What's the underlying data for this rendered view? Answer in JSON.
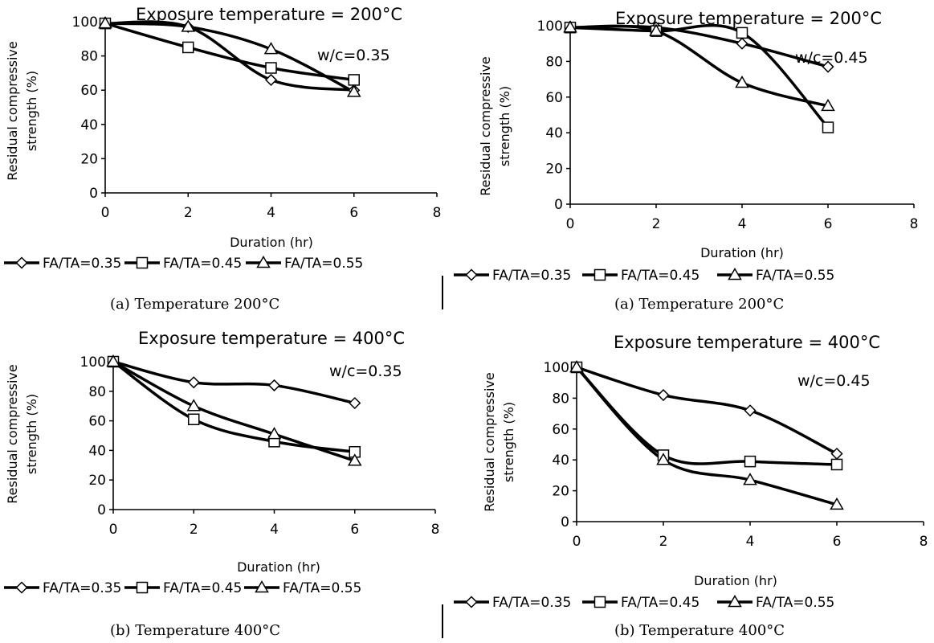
{
  "captions": [
    "(a) Temperature 200°C",
    "(a) Temperature 200°C",
    "(b) Temperature 400°C",
    "(b) Temperature 400°C"
  ],
  "chart_data": [
    {
      "type": "line",
      "title": "Exposure temperature = 200°C",
      "annotation": "w/c=0.35",
      "xlabel": "Duration (hr)",
      "ylabel": "Residual compressive strength (%)",
      "x": [
        0,
        2,
        4,
        6
      ],
      "xticks": [
        "0",
        "2",
        "4",
        "6",
        "8"
      ],
      "yticks": [
        "0",
        "20",
        "40",
        "60",
        "80",
        "100"
      ],
      "xlim": [
        0,
        8
      ],
      "ylim": [
        0,
        100
      ],
      "legend_position": "bottom",
      "series": [
        {
          "name": "FA/TA=0.35",
          "marker": "diamond",
          "values": [
            99,
            97,
            66,
            60
          ]
        },
        {
          "name": "FA/TA=0.45",
          "marker": "square",
          "values": [
            99,
            85,
            73,
            66
          ]
        },
        {
          "name": "FA/TA=0.55",
          "marker": "triangle",
          "values": [
            99,
            97,
            84,
            59
          ]
        }
      ]
    },
    {
      "type": "line",
      "title": "Exposure temperature = 200°C",
      "annotation": "w/c=0.45",
      "xlabel": "Duration (hr)",
      "ylabel": "Residual compressive strength (%)",
      "x": [
        0,
        2,
        4,
        6
      ],
      "xticks": [
        "0",
        "2",
        "4",
        "6",
        "8"
      ],
      "yticks": [
        "0",
        "20",
        "40",
        "60",
        "80",
        "100"
      ],
      "xlim": [
        0,
        8
      ],
      "ylim": [
        0,
        100
      ],
      "legend_position": "bottom",
      "series": [
        {
          "name": "FA/TA=0.35",
          "marker": "diamond",
          "values": [
            99,
            99,
            90,
            77
          ]
        },
        {
          "name": "FA/TA=0.45",
          "marker": "square",
          "values": [
            99,
            97,
            96,
            43
          ]
        },
        {
          "name": "FA/TA=0.55",
          "marker": "triangle",
          "values": [
            99,
            97,
            68,
            55
          ]
        }
      ]
    },
    {
      "type": "line",
      "title": "Exposure temperature = 400°C",
      "annotation": "w/c=0.35",
      "xlabel": "Duration (hr)",
      "ylabel": "Residual compressive strength (%)",
      "x": [
        0,
        2,
        4,
        6
      ],
      "xticks": [
        "0",
        "2",
        "4",
        "6",
        "8"
      ],
      "yticks": [
        "0",
        "20",
        "40",
        "60",
        "80",
        "100"
      ],
      "xlim": [
        0,
        8
      ],
      "ylim": [
        0,
        100
      ],
      "legend_position": "bottom",
      "series": [
        {
          "name": "FA/TA=0.35",
          "marker": "diamond",
          "values": [
            100,
            86,
            84,
            72
          ]
        },
        {
          "name": "FA/TA=0.45",
          "marker": "square",
          "values": [
            100,
            61,
            46,
            39
          ]
        },
        {
          "name": "FA/TA=0.55",
          "marker": "triangle",
          "values": [
            100,
            70,
            51,
            33
          ]
        }
      ]
    },
    {
      "type": "line",
      "title": "Exposure temperature = 400°C",
      "annotation": "w/c=0.45",
      "xlabel": "Duration (hr)",
      "ylabel": "Residual compressive strength (%)",
      "x": [
        0,
        2,
        4,
        6
      ],
      "xticks": [
        "0",
        "2",
        "4",
        "6",
        "8"
      ],
      "yticks": [
        "0",
        "20",
        "40",
        "60",
        "80",
        "100"
      ],
      "xlim": [
        0,
        8
      ],
      "ylim": [
        0,
        100
      ],
      "legend_position": "bottom",
      "series": [
        {
          "name": "FA/TA=0.35",
          "marker": "diamond",
          "values": [
            100,
            82,
            72,
            44
          ]
        },
        {
          "name": "FA/TA=0.45",
          "marker": "square",
          "values": [
            100,
            43,
            39,
            37
          ]
        },
        {
          "name": "FA/TA=0.55",
          "marker": "triangle",
          "values": [
            100,
            40,
            27,
            11
          ]
        }
      ]
    }
  ]
}
